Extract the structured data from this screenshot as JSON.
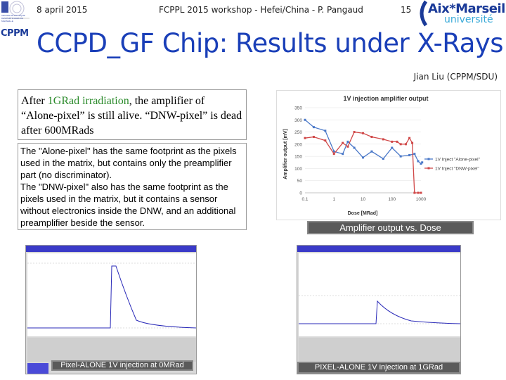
{
  "header": {
    "date": "8 april 2015",
    "event": "FCPPL 2015 workshop - Hefei/China - P. Pangaud",
    "page_number": "15",
    "cppm_logo_text": "CPPM",
    "cppm_logo_small": "CENTRE DE PHYSIQUE DES PARTICULES DE MARSEILLE",
    "amu_logo_top": "Aix*Marseille",
    "amu_logo_bottom": "université"
  },
  "slide": {
    "title": "CCPD_GF Chip: Results under X-Rays",
    "author": "Jian Liu (CPPM/SDU)"
  },
  "box1": {
    "part1": "After ",
    "highlight": "1GRad irradiation",
    "part2": ", the amplifier of “Alone-pixel” is still alive. “DNW-pixel” is dead after 600MRads"
  },
  "box2": {
    "line1": "The \"Alone-pixel\" has the same footprint as the pixels used in the matrix, but contains only the preamplifier part (no discriminator).",
    "line2": "The \"DNW-pixel\" also has the same footprint as the pixels used in the matrix, but it contains a sensor without electronics inside the DNW, and an additional preamplifier beside the sensor."
  },
  "captions": {
    "chart": "Amplifier output vs. Dose",
    "scope_left": "Pixel-ALONE 1V injection at 0MRad",
    "scope_right": "PIXEL-ALONE 1V injection at 1GRad"
  },
  "colors": {
    "title": "#1a3fb8",
    "highlight": "#2a8a2a",
    "series_alone": "#4a78c8",
    "series_dnw": "#d04848",
    "caption_bg": "#5a5a5a"
  },
  "chart_data": {
    "type": "line",
    "title": "1V injection amplifier output",
    "xlabel": "Dose [MRad]",
    "ylabel": "Amplifier output [mV]",
    "x_scale": "log",
    "xlim": [
      0.1,
      1000
    ],
    "ylim": [
      0,
      350
    ],
    "x_ticks": [
      "0.1",
      "1",
      "10",
      "100",
      "1000"
    ],
    "y_ticks": [
      0,
      50,
      100,
      150,
      200,
      250,
      300,
      350
    ],
    "legend_position": "right",
    "series": [
      {
        "name": "1V Inject \"Alone-pixel\"",
        "color": "#4a78c8",
        "x": [
          0.1,
          0.2,
          0.5,
          1,
          2,
          3,
          5,
          10,
          20,
          50,
          100,
          200,
          400,
          600,
          800,
          1000,
          1100
        ],
        "y": [
          300,
          270,
          255,
          170,
          160,
          210,
          185,
          145,
          170,
          140,
          185,
          150,
          155,
          160,
          130,
          120,
          125
        ]
      },
      {
        "name": "1V Inject \"DNW-pixel\"",
        "color": "#d04848",
        "x": [
          0.1,
          0.2,
          0.5,
          1,
          2,
          3,
          5,
          10,
          20,
          50,
          100,
          150,
          200,
          300,
          400,
          500,
          600,
          800,
          1000
        ],
        "y": [
          225,
          230,
          215,
          160,
          205,
          190,
          250,
          245,
          230,
          220,
          210,
          210,
          200,
          200,
          225,
          205,
          0,
          0,
          0
        ]
      }
    ]
  }
}
